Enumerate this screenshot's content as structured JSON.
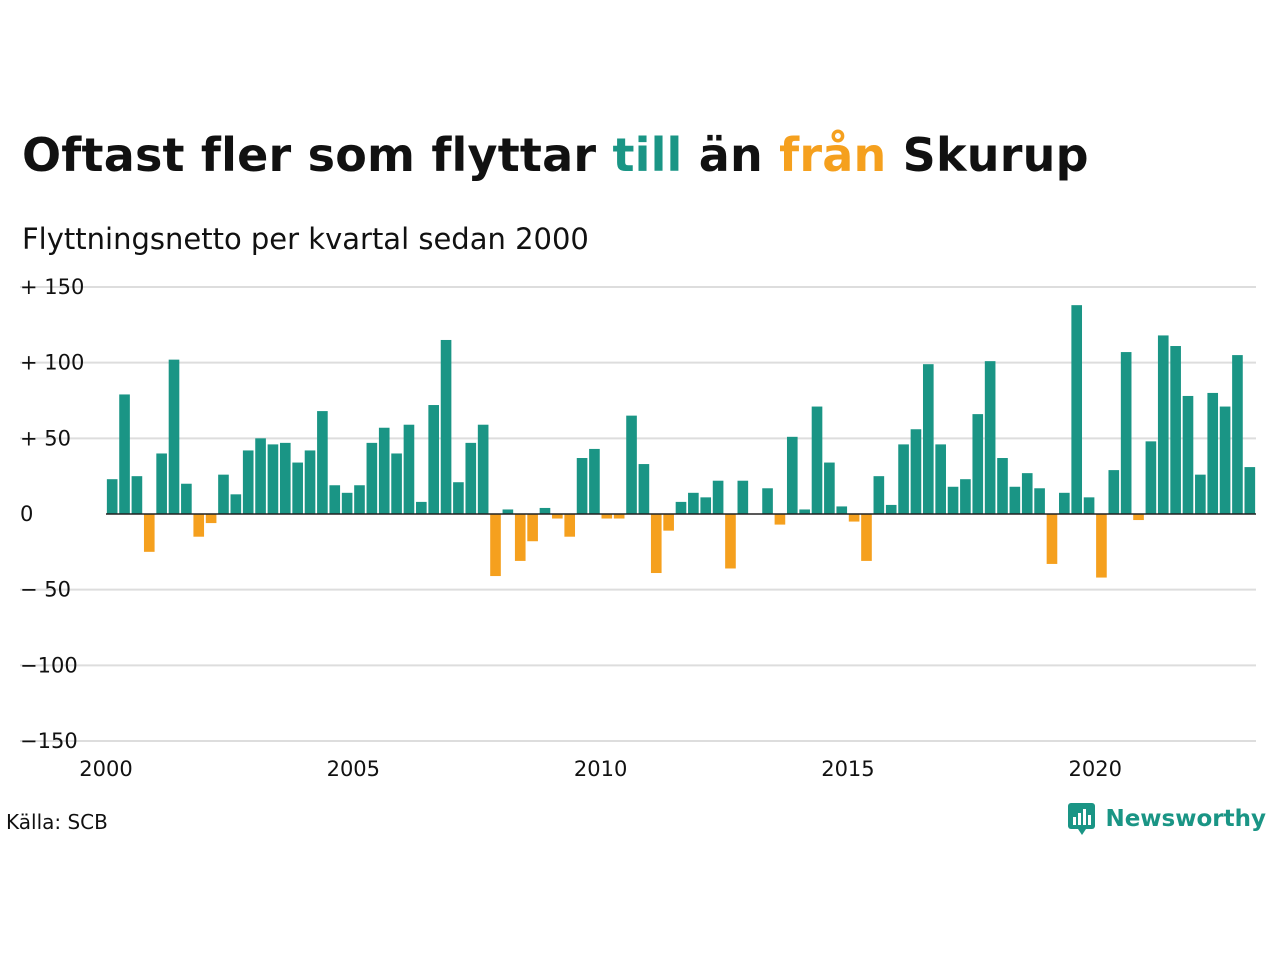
{
  "title": {
    "part1": "Oftast fler som flyttar ",
    "word_in": "till",
    "part2": " än ",
    "word_out": "från",
    "part3": " Skurup"
  },
  "subtitle": "Flyttningsnetto per kvartal sedan 2000",
  "source": "Källa: SCB",
  "brand": {
    "name": "Newsworthy",
    "icon": "newsworthy-logo-icon"
  },
  "colors": {
    "positive": "#1a9585",
    "negative": "#f5a01e",
    "grid": "#dddddd",
    "baseline": "#222222",
    "brand": "#1a9585"
  },
  "chart_data": {
    "type": "bar",
    "title": "Oftast fler som flyttar till än från Skurup",
    "subtitle": "Flyttningsnetto per kvartal sedan 2000",
    "x_start": 2000,
    "periods_per_year": 4,
    "x_ticks": [
      "2000",
      "2005",
      "2010",
      "2015",
      "2020"
    ],
    "y_ticks": [
      "+ 150",
      "+ 100",
      "+  50",
      "0",
      "− 50",
      "−100",
      "−150"
    ],
    "ylim": [
      -150,
      150
    ],
    "grid": true,
    "values": [
      23,
      79,
      25,
      -25,
      40,
      102,
      20,
      -15,
      -6,
      26,
      13,
      42,
      50,
      46,
      47,
      34,
      42,
      68,
      19,
      14,
      19,
      47,
      57,
      40,
      59,
      8,
      72,
      115,
      21,
      47,
      59,
      -41,
      3,
      -31,
      -18,
      4,
      -3,
      -15,
      37,
      43,
      -3,
      -3,
      65,
      33,
      -39,
      -11,
      8,
      14,
      11,
      22,
      -36,
      22,
      0,
      17,
      -7,
      51,
      3,
      71,
      34,
      5,
      -5,
      -31,
      25,
      6,
      46,
      56,
      99,
      46,
      18,
      23,
      66,
      101,
      37,
      18,
      27,
      17,
      -33,
      14,
      138,
      11,
      -42,
      29,
      107,
      -4,
      48,
      118,
      111,
      78,
      26,
      80,
      71,
      105,
      31
    ]
  }
}
